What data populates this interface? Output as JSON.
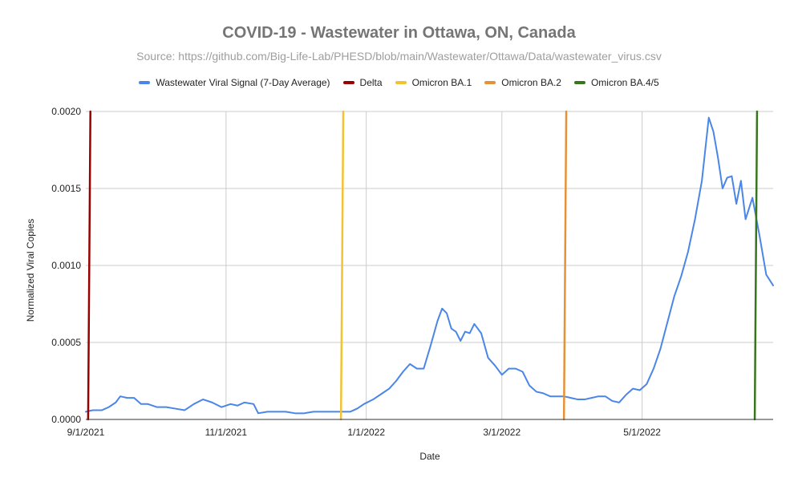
{
  "chart_data": {
    "type": "line",
    "title": "COVID-19 -  Wastewater in Ottawa, ON, Canada",
    "subtitle": "Source: https://github.com/Big-Life-Lab/PHESD/blob/main/Wastewater/Ottawa/Data/wastewater_virus.csv",
    "xlabel": "Date",
    "ylabel": "Normalized Viral Copies",
    "xlim": [
      "2021-09-01",
      "2022-06-27"
    ],
    "ylim": [
      0,
      0.002
    ],
    "x_ticks": [
      "9/1/2021",
      "11/1/2021",
      "1/1/2022",
      "3/1/2022",
      "5/1/2022"
    ],
    "x_tick_dates": [
      "2021-09-01",
      "2021-11-01",
      "2022-01-01",
      "2022-03-01",
      "2022-05-01"
    ],
    "y_ticks": [
      "0.0000",
      "0.0005",
      "0.0010",
      "0.0015",
      "0.0020"
    ],
    "y_tick_values": [
      0,
      0.0005,
      0.001,
      0.0015,
      0.002
    ],
    "grid": true,
    "legend_position": "top",
    "series": [
      {
        "name": "Wastewater Viral Signal (7-Day Average)",
        "color": "#4a86e8",
        "points": [
          [
            "2021-09-01",
            5e-05
          ],
          [
            "2021-09-04",
            6e-05
          ],
          [
            "2021-09-08",
            6e-05
          ],
          [
            "2021-09-11",
            8e-05
          ],
          [
            "2021-09-14",
            0.00011
          ],
          [
            "2021-09-16",
            0.00015
          ],
          [
            "2021-09-19",
            0.00014
          ],
          [
            "2021-09-22",
            0.00014
          ],
          [
            "2021-09-25",
            0.0001
          ],
          [
            "2021-09-28",
            0.0001
          ],
          [
            "2021-10-02",
            8e-05
          ],
          [
            "2021-10-06",
            8e-05
          ],
          [
            "2021-10-10",
            7e-05
          ],
          [
            "2021-10-14",
            6e-05
          ],
          [
            "2021-10-18",
            0.0001
          ],
          [
            "2021-10-22",
            0.00013
          ],
          [
            "2021-10-26",
            0.00011
          ],
          [
            "2021-10-30",
            8e-05
          ],
          [
            "2021-11-03",
            0.0001
          ],
          [
            "2021-11-06",
            9e-05
          ],
          [
            "2021-11-09",
            0.00011
          ],
          [
            "2021-11-13",
            0.0001
          ],
          [
            "2021-11-15",
            4e-05
          ],
          [
            "2021-11-19",
            5e-05
          ],
          [
            "2021-11-23",
            5e-05
          ],
          [
            "2021-11-27",
            5e-05
          ],
          [
            "2021-12-01",
            4e-05
          ],
          [
            "2021-12-05",
            4e-05
          ],
          [
            "2021-12-09",
            5e-05
          ],
          [
            "2021-12-13",
            5e-05
          ],
          [
            "2021-12-17",
            5e-05
          ],
          [
            "2021-12-21",
            5e-05
          ],
          [
            "2021-12-25",
            5e-05
          ],
          [
            "2021-12-28",
            7e-05
          ],
          [
            "2021-12-31",
            0.0001
          ],
          [
            "2022-01-04",
            0.00013
          ],
          [
            "2022-01-08",
            0.00017
          ],
          [
            "2022-01-11",
            0.0002
          ],
          [
            "2022-01-14",
            0.00025
          ],
          [
            "2022-01-17",
            0.00031
          ],
          [
            "2022-01-20",
            0.00036
          ],
          [
            "2022-01-23",
            0.00033
          ],
          [
            "2022-01-26",
            0.00033
          ],
          [
            "2022-01-29",
            0.00048
          ],
          [
            "2022-02-01",
            0.00064
          ],
          [
            "2022-02-03",
            0.00072
          ],
          [
            "2022-02-05",
            0.00069
          ],
          [
            "2022-02-07",
            0.00059
          ],
          [
            "2022-02-09",
            0.00057
          ],
          [
            "2022-02-11",
            0.00051
          ],
          [
            "2022-02-13",
            0.00057
          ],
          [
            "2022-02-15",
            0.00056
          ],
          [
            "2022-02-17",
            0.00062
          ],
          [
            "2022-02-20",
            0.00056
          ],
          [
            "2022-02-23",
            0.0004
          ],
          [
            "2022-02-26",
            0.00035
          ],
          [
            "2022-03-01",
            0.00029
          ],
          [
            "2022-03-04",
            0.00033
          ],
          [
            "2022-03-07",
            0.00033
          ],
          [
            "2022-03-10",
            0.00031
          ],
          [
            "2022-03-13",
            0.00022
          ],
          [
            "2022-03-16",
            0.00018
          ],
          [
            "2022-03-19",
            0.00017
          ],
          [
            "2022-03-22",
            0.00015
          ],
          [
            "2022-03-25",
            0.00015
          ],
          [
            "2022-03-28",
            0.00015
          ],
          [
            "2022-03-31",
            0.00014
          ],
          [
            "2022-04-03",
            0.00013
          ],
          [
            "2022-04-06",
            0.00013
          ],
          [
            "2022-04-09",
            0.00014
          ],
          [
            "2022-04-12",
            0.00015
          ],
          [
            "2022-04-15",
            0.00015
          ],
          [
            "2022-04-18",
            0.00012
          ],
          [
            "2022-04-21",
            0.00011
          ],
          [
            "2022-04-24",
            0.00016
          ],
          [
            "2022-04-27",
            0.0002
          ],
          [
            "2022-04-30",
            0.00019
          ],
          [
            "2022-05-03",
            0.00023
          ],
          [
            "2022-05-06",
            0.00033
          ],
          [
            "2022-05-09",
            0.00046
          ],
          [
            "2022-05-12",
            0.00063
          ],
          [
            "2022-05-15",
            0.0008
          ],
          [
            "2022-05-18",
            0.00093
          ],
          [
            "2022-05-21",
            0.00109
          ],
          [
            "2022-05-24",
            0.0013
          ],
          [
            "2022-05-27",
            0.00155
          ],
          [
            "2022-05-30",
            0.00196
          ],
          [
            "2022-06-01",
            0.00187
          ],
          [
            "2022-06-03",
            0.0017
          ],
          [
            "2022-06-05",
            0.0015
          ],
          [
            "2022-06-07",
            0.00157
          ],
          [
            "2022-06-09",
            0.00158
          ],
          [
            "2022-06-11",
            0.0014
          ],
          [
            "2022-06-13",
            0.00155
          ],
          [
            "2022-06-15",
            0.0013
          ],
          [
            "2022-06-18",
            0.00144
          ],
          [
            "2022-06-21",
            0.0012
          ],
          [
            "2022-06-24",
            0.00094
          ],
          [
            "2022-06-27",
            0.00087
          ]
        ]
      },
      {
        "name": "Delta",
        "color": "#990000",
        "points": [
          [
            "2021-09-02",
            0
          ],
          [
            "2021-09-03",
            0.002
          ]
        ]
      },
      {
        "name": "Omicron BA.1",
        "color": "#f1c232",
        "points": [
          [
            "2021-12-21",
            0
          ],
          [
            "2021-12-22",
            0.002
          ]
        ]
      },
      {
        "name": "Omicron BA.2",
        "color": "#e69138",
        "points": [
          [
            "2022-03-28",
            0
          ],
          [
            "2022-03-29",
            0.002
          ]
        ]
      },
      {
        "name": "Omicron BA.4/5",
        "color": "#38761d",
        "points": [
          [
            "2022-06-19",
            0
          ],
          [
            "2022-06-20",
            0.002
          ]
        ]
      }
    ]
  }
}
